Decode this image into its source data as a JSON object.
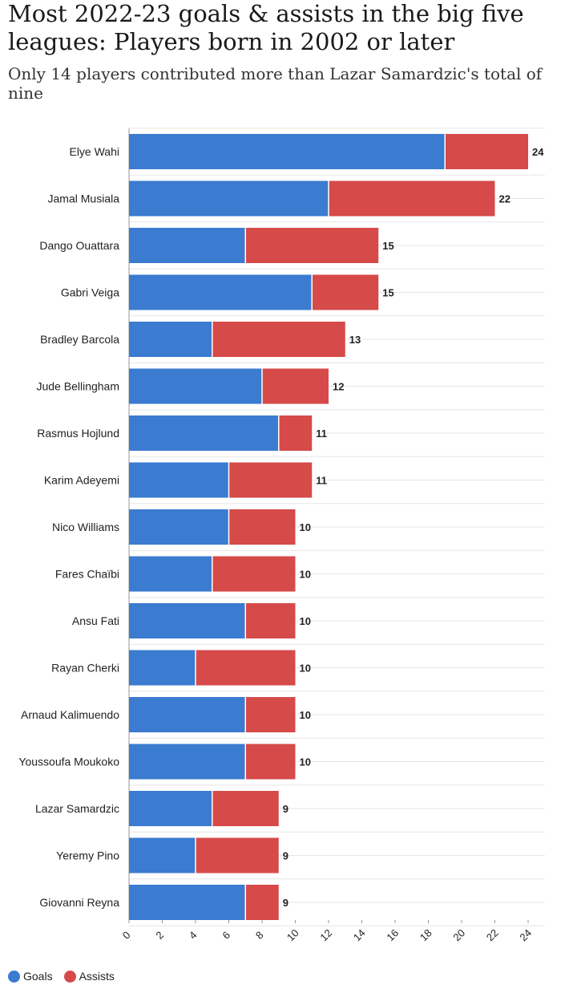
{
  "title": "Most 2022-23 goals & assists in the big five leagues: Players born in 2002 or later",
  "subtitle": "Only 14 players contributed more than Lazar Samardzic's total of nine",
  "colors": {
    "goals": "#3b7bd0",
    "assists": "#d64a4a",
    "grid": "#e6e6e6",
    "text": "#222222"
  },
  "chart_data": {
    "type": "bar",
    "orientation": "horizontal",
    "stacked": true,
    "categories": [
      "Elye Wahi",
      "Jamal Musiala",
      "Dango Ouattara",
      "Gabri Veiga",
      "Bradley Barcola",
      "Jude Bellingham",
      "Rasmus Hojlund",
      "Karim Adeyemi",
      "Nico Williams",
      "Fares Chaïbi",
      "Ansu Fati",
      "Rayan Cherki",
      "Arnaud Kalimuendo",
      "Youssoufa Moukoko",
      "Lazar Samardzic",
      "Yeremy Pino",
      "Giovanni Reyna"
    ],
    "series": [
      {
        "name": "Goals",
        "values": [
          19,
          12,
          7,
          11,
          5,
          8,
          9,
          6,
          6,
          5,
          7,
          4,
          7,
          7,
          5,
          4,
          7
        ]
      },
      {
        "name": "Assists",
        "values": [
          5,
          10,
          8,
          4,
          8,
          4,
          2,
          5,
          4,
          5,
          3,
          6,
          3,
          3,
          4,
          5,
          2
        ]
      }
    ],
    "totals": [
      24,
      22,
      15,
      15,
      13,
      12,
      11,
      11,
      10,
      10,
      10,
      10,
      10,
      10,
      9,
      9,
      9
    ],
    "xlim": [
      0,
      24
    ],
    "xticks": [
      0,
      2,
      4,
      6,
      8,
      10,
      12,
      14,
      16,
      18,
      20,
      22,
      24
    ],
    "grid": true,
    "legend_position": "bottom-left"
  }
}
